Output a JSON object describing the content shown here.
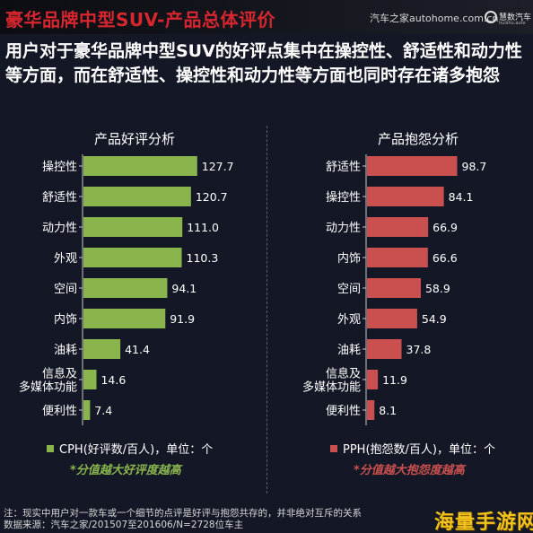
{
  "header": {
    "title": "豪华品牌中型SUV-产品总体评价",
    "source_logo": "汽车之家autohome.com.cn",
    "brand_logo": "慧数汽车",
    "brand_logo_sub": "huishu.auto"
  },
  "summary": "用户对于豪华品牌中型SUV的好评点集中在操控性、舒适性和动力性等方面，而在舒适性、操控性和动力性等方面也同时存在诸多抱怨",
  "colors": {
    "good": "#8ab54d",
    "bad": "#c9504f",
    "text": "#ffffff",
    "background": "#141826",
    "title": "#d8262f"
  },
  "chart_data": [
    {
      "type": "bar",
      "orientation": "horizontal",
      "title": "产品好评分析",
      "categories": [
        "操控性",
        "舒适性",
        "动力性",
        "外观",
        "空间",
        "内饰",
        "油耗",
        "信息及\n多媒体功能",
        "便利性"
      ],
      "values": [
        127.7,
        120.7,
        111.0,
        110.3,
        94.1,
        91.9,
        41.4,
        14.6,
        7.4
      ],
      "value_labels": [
        "127.7",
        "120.7",
        "111.0",
        "110.3",
        "94.1",
        "91.9",
        "41.4",
        "14.6",
        "7.4"
      ],
      "legend": "CPH(好评数/百人)，单位：个",
      "note": "*分值越大好评度越高"
    },
    {
      "type": "bar",
      "orientation": "horizontal",
      "title": "产品抱怨分析",
      "categories": [
        "舒适性",
        "操控性",
        "动力性",
        "内饰",
        "空间",
        "外观",
        "油耗",
        "信息及\n多媒体功能",
        "便利性"
      ],
      "values": [
        98.7,
        84.1,
        66.9,
        66.6,
        58.9,
        54.9,
        37.8,
        11.9,
        8.1
      ],
      "value_labels": [
        "98.7",
        "84.1",
        "66.9",
        "66.6",
        "58.9",
        "54.9",
        "37.8",
        "11.9",
        "8.1"
      ],
      "legend": "PPH(抱怨数/百人)，单位：个",
      "note": "*分值越大抱怨度越高"
    }
  ],
  "footnote": {
    "line1": "注：现实中用户对一款车或一个细节的点评是好评与抱怨共存的，并非绝对互斥的关系",
    "line2": "数据来源：汽车之家/201507至201606/N=2728位车主"
  },
  "watermark": "海量手游网"
}
